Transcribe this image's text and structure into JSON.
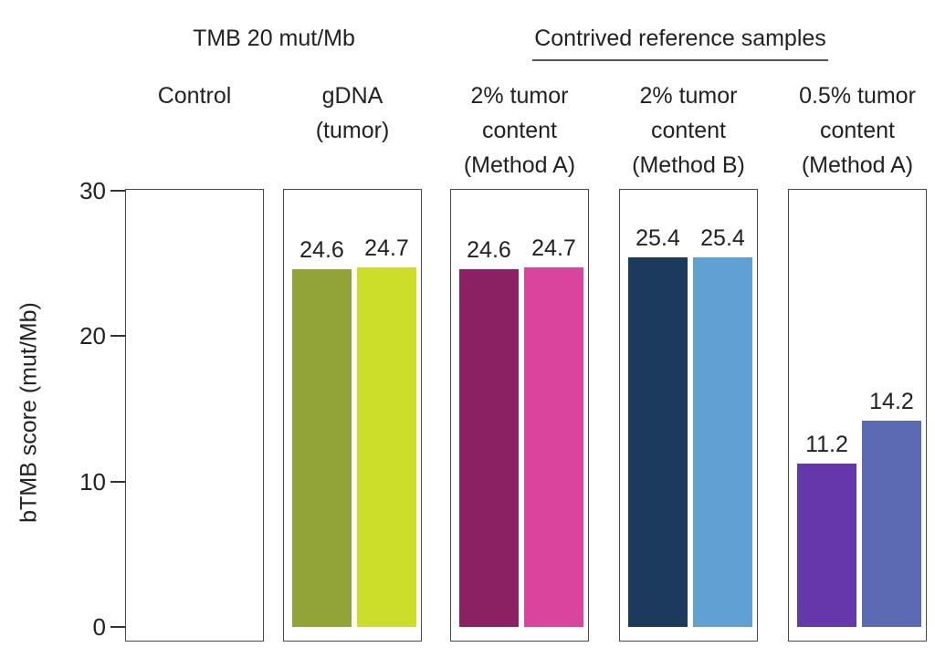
{
  "chart_data": {
    "type": "bar",
    "ylabel": "bTMB score (mut/Mb)",
    "ylim": [
      0,
      30
    ],
    "yticks": [
      0,
      10,
      20,
      30
    ],
    "grid": false,
    "legend": "none",
    "value_labels_position": "above bars",
    "group_headers": [
      {
        "label": "TMB 20 mut/Mb",
        "underlined": false,
        "spans_panels": [
          0,
          1
        ]
      },
      {
        "label": "Contrived reference samples",
        "underlined": true,
        "spans_panels": [
          2,
          3,
          4
        ]
      }
    ],
    "panels": [
      {
        "label_lines": [
          "Control"
        ],
        "group": "TMB 20 mut/Mb",
        "bars": []
      },
      {
        "label_lines": [
          "gDNA",
          "(tumor)"
        ],
        "group": "TMB 20 mut/Mb",
        "bars": [
          {
            "value": 24.6,
            "label": "24.6",
            "color": "#92a438"
          },
          {
            "value": 24.7,
            "label": "24.7",
            "color": "#cdde2a"
          }
        ]
      },
      {
        "label_lines": [
          "2% tumor",
          "content",
          "(Method A)"
        ],
        "group": "Contrived reference samples",
        "bars": [
          {
            "value": 24.6,
            "label": "24.6",
            "color": "#8b2062"
          },
          {
            "value": 24.7,
            "label": "24.7",
            "color": "#d9459c"
          }
        ]
      },
      {
        "label_lines": [
          "2% tumor",
          "content",
          "(Method B)"
        ],
        "group": "Contrived reference samples",
        "bars": [
          {
            "value": 25.4,
            "label": "25.4",
            "color": "#1c3a5c"
          },
          {
            "value": 25.4,
            "label": "25.4",
            "color": "#60a0d3"
          }
        ]
      },
      {
        "label_lines": [
          "0.5% tumor",
          "content",
          "(Method A)"
        ],
        "group": "Contrived reference samples",
        "bars": [
          {
            "value": 11.2,
            "label": "11.2",
            "color": "#6437aa"
          },
          {
            "value": 14.2,
            "label": "14.2",
            "color": "#5c69b3"
          }
        ]
      }
    ],
    "colors": {
      "text": "#222222",
      "panel_border": "#4a4a4a",
      "tick": "#333333",
      "underline": "#555555",
      "background": "#ffffff"
    }
  }
}
